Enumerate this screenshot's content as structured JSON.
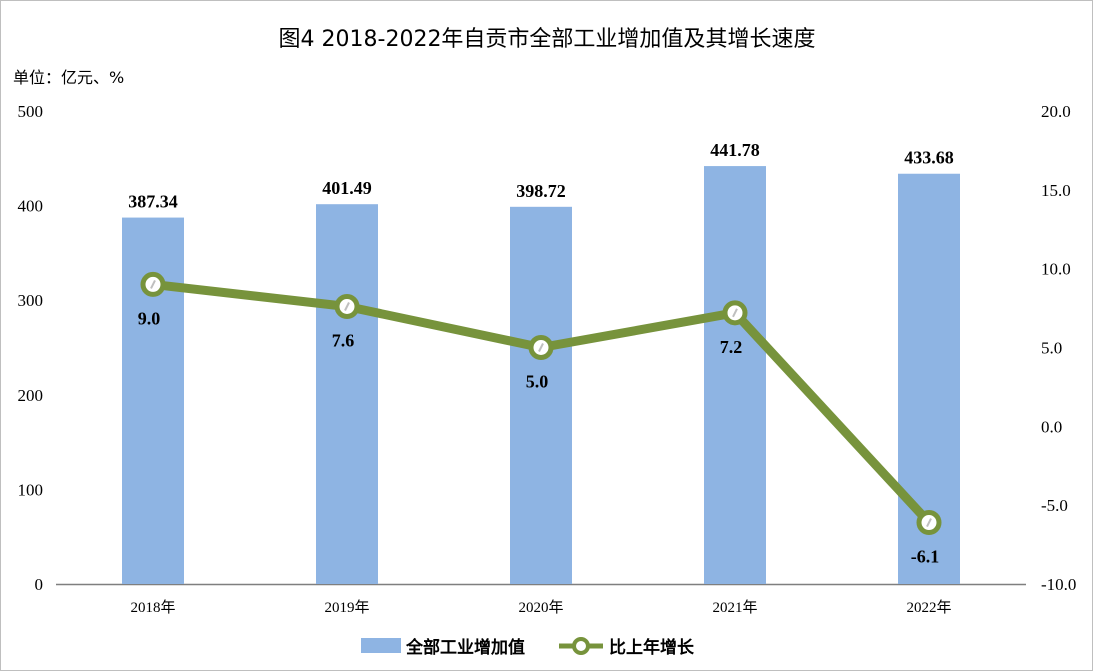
{
  "chart_data": {
    "type": "bar+line",
    "title": "图4  2018-2022年自贡市全部工业增加值及其增长速度",
    "unit_label": "单位：亿元、%",
    "categories": [
      "2018年",
      "2019年",
      "2020年",
      "2021年",
      "2022年"
    ],
    "series": [
      {
        "name": "全部工业增加值",
        "type": "bar",
        "axis": "left",
        "values": [
          387.34,
          401.49,
          398.72,
          441.78,
          433.68
        ],
        "labels": [
          "387.34",
          "401.49",
          "398.72",
          "441.78",
          "433.68"
        ],
        "color": "#8eb4e3"
      },
      {
        "name": "比上年增长",
        "type": "line",
        "axis": "right",
        "values": [
          9.0,
          7.6,
          5.0,
          7.2,
          -6.1
        ],
        "labels": [
          "9.0",
          "7.6",
          "5.0",
          "7.2",
          "-6.1"
        ],
        "color": "#77933c"
      }
    ],
    "y_left": {
      "min": 0,
      "max": 500,
      "ticks": [
        "0",
        "100",
        "200",
        "300",
        "400",
        "500"
      ]
    },
    "y_right": {
      "min": -10,
      "max": 20,
      "ticks": [
        "-10.0",
        "-5.0",
        "0.0",
        "5.0",
        "10.0",
        "15.0",
        "20.0"
      ]
    },
    "grid": false,
    "legend_position": "bottom"
  }
}
